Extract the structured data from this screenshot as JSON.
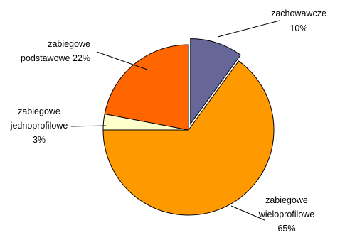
{
  "chart_data": {
    "type": "pie",
    "title": "",
    "legend": "none",
    "slices": [
      {
        "label_lines": [
          "zachowawcze",
          "10%"
        ],
        "value": 10,
        "color": "#666699",
        "exploded": true
      },
      {
        "label_lines": [
          "zabiegowe",
          "wieloprofilowe",
          "65%"
        ],
        "value": 65,
        "color": "#FF9900",
        "exploded": false
      },
      {
        "label_lines": [
          "zabiegowe",
          "jednoprofilowe",
          "3%"
        ],
        "value": 3,
        "color": "#FFFFCC",
        "exploded": false
      },
      {
        "label_lines": [
          "zabiegowe",
          "podstawowe 22%"
        ],
        "value": 22,
        "color": "#FF6600",
        "exploded": false
      }
    ]
  }
}
